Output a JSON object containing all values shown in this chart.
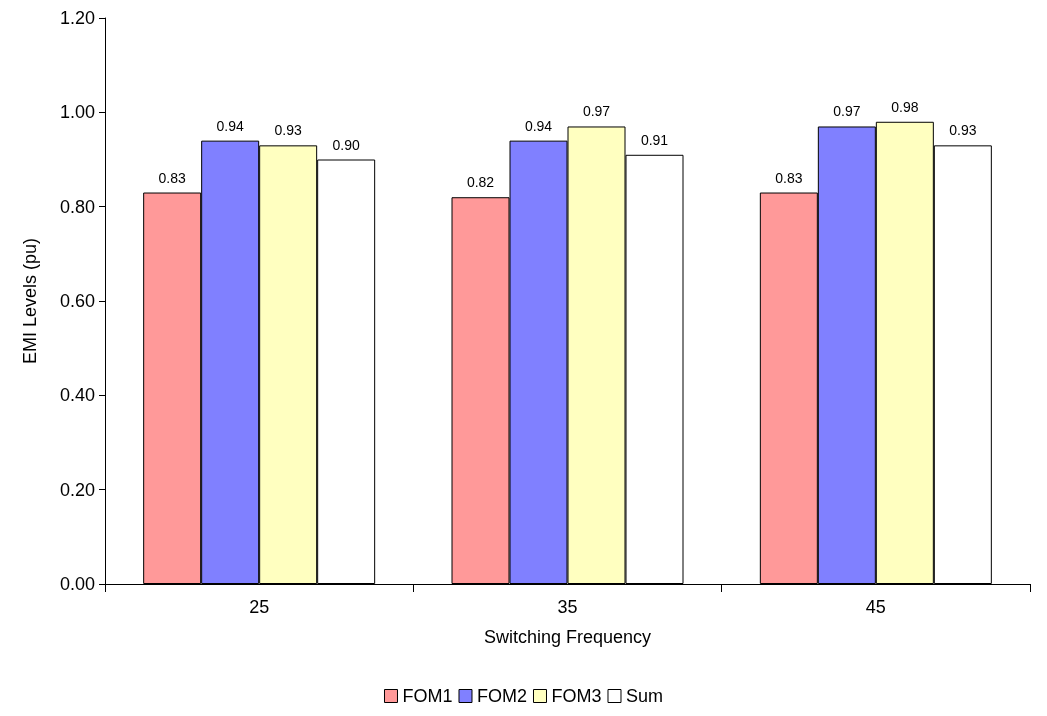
{
  "chart_data": {
    "type": "bar",
    "xlabel": "Switching Frequency",
    "ylabel": "EMI Levels (pu)",
    "categories": [
      "25",
      "35",
      "45"
    ],
    "series": [
      {
        "name": "FOM1",
        "color": "#ff9999",
        "values": [
          0.83,
          0.82,
          0.83
        ],
        "value_labels": [
          "0.83",
          "0.82",
          "0.83"
        ]
      },
      {
        "name": "FOM2",
        "color": "#8080ff",
        "values": [
          0.94,
          0.94,
          0.97
        ],
        "value_labels": [
          "0.94",
          "0.94",
          "0.97"
        ]
      },
      {
        "name": "FOM3",
        "color": "#ffffc0",
        "values": [
          0.93,
          0.97,
          0.98
        ],
        "value_labels": [
          "0.93",
          "0.97",
          "0.98"
        ]
      },
      {
        "name": "Sum",
        "color": "#ffffff",
        "values": [
          0.9,
          0.91,
          0.93
        ],
        "value_labels": [
          "0.90",
          "0.91",
          "0.93"
        ]
      }
    ],
    "ylim": [
      0,
      1.2
    ],
    "yticks": [
      {
        "value": 0,
        "label": "0.00"
      },
      {
        "value": 0.2,
        "label": "0.20"
      },
      {
        "value": 0.4,
        "label": "0.40"
      },
      {
        "value": 0.6,
        "label": "0.60"
      },
      {
        "value": 0.8,
        "label": "0.80"
      },
      {
        "value": 1.0,
        "label": "1.00"
      },
      {
        "value": 1.2,
        "label": "1.20"
      }
    ],
    "grid": false,
    "legend": "bottom"
  }
}
